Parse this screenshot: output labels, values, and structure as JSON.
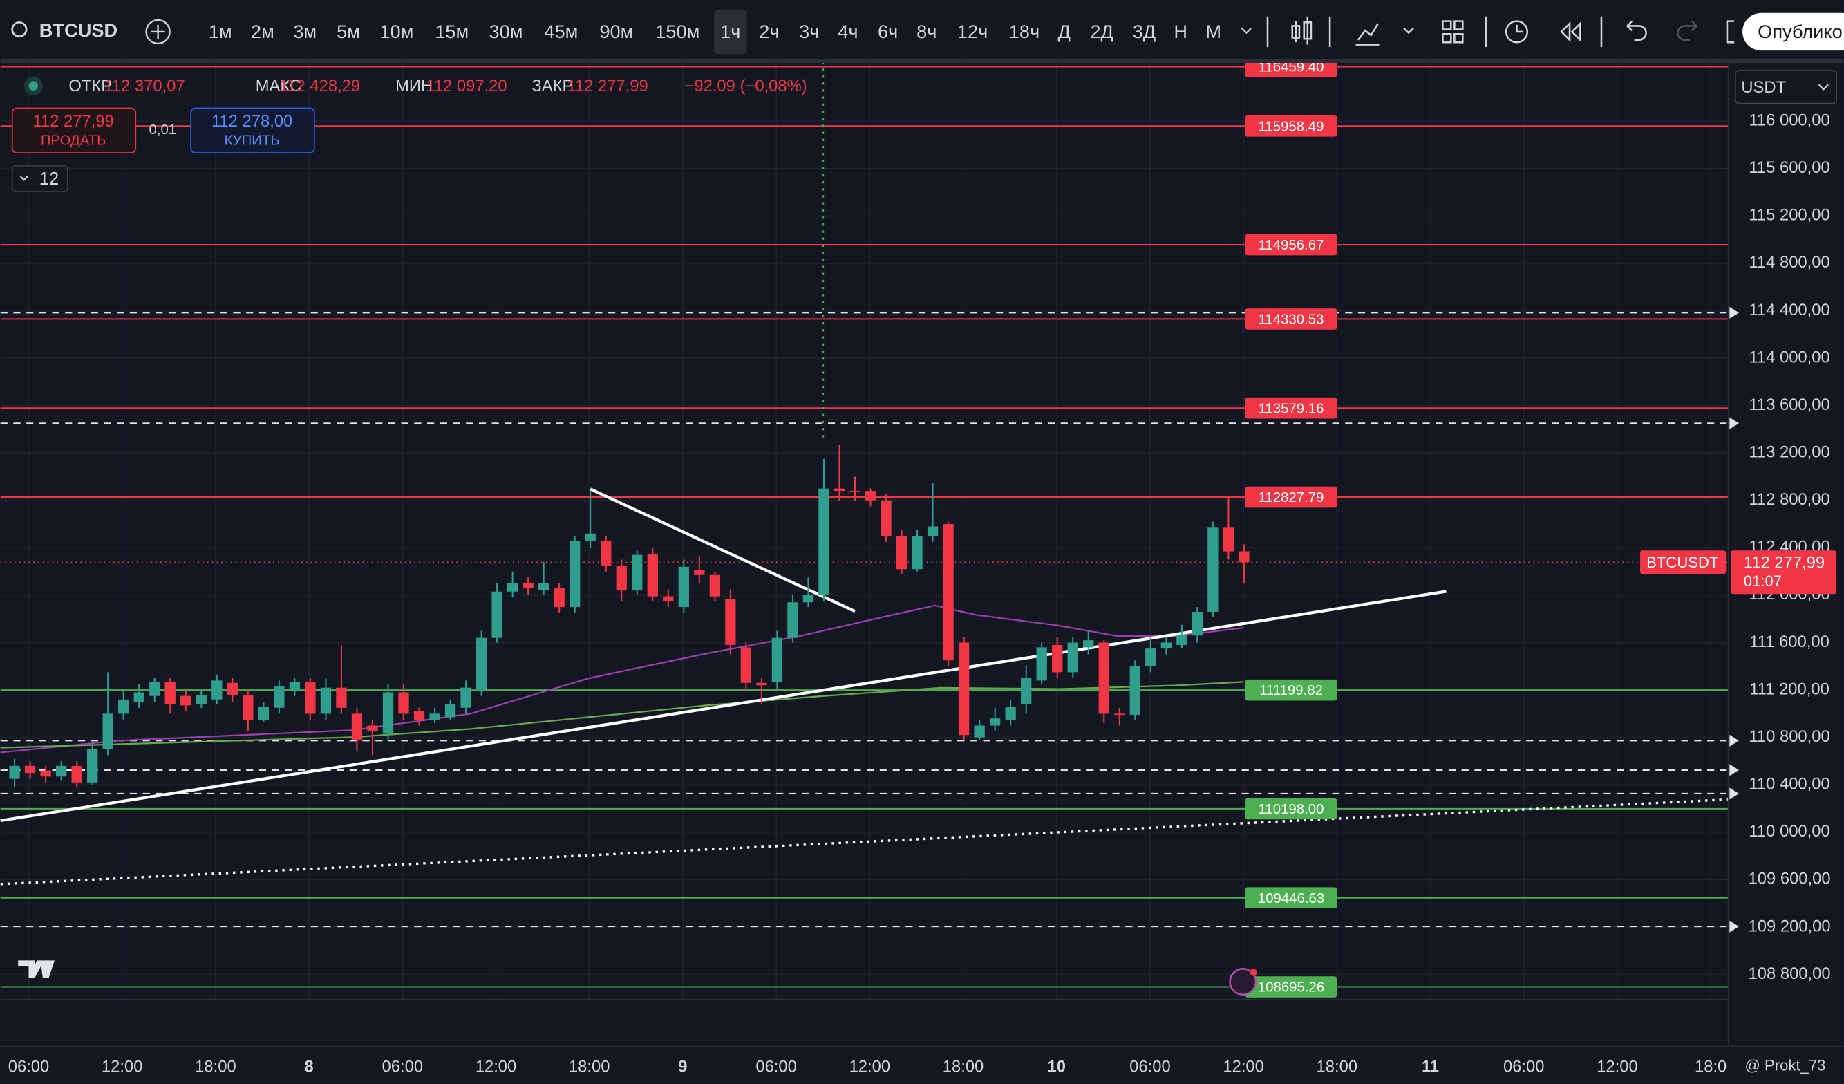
{
  "toolbar": {
    "symbol": "BTCUSD",
    "intervals": [
      "1м",
      "2м",
      "3м",
      "5м",
      "10м",
      "15м",
      "30м",
      "45м",
      "90м",
      "150м",
      "1ч",
      "2ч",
      "3ч",
      "4ч",
      "6ч",
      "8ч",
      "12ч",
      "18ч",
      "Д",
      "2Д",
      "3Д",
      "Н",
      "М"
    ],
    "active_interval_index": 10,
    "publish": "Опублико"
  },
  "ohlc": {
    "open_label": "ОТКР",
    "open": "112 370,07",
    "high_label": "МАКС",
    "high": "112 428,29",
    "low_label": "МИН",
    "low": "112 097,20",
    "close_label": "ЗАКР",
    "close": "112 277,99",
    "change": "−92,09 (−0,08%)"
  },
  "trade": {
    "sell_price": "112 277,99",
    "sell": "ПРОДАТЬ",
    "spread": "0,01",
    "buy_price": "112 278,00",
    "buy": "КУПИТЬ",
    "quantity": "12"
  },
  "currency": "USDT",
  "watermark": "@ Prokt_73",
  "chart_data": {
    "type": "candlestick",
    "up_color": "#2f9e8c",
    "down_color": "#f23645",
    "grid": true,
    "xticks": [
      "06:00",
      "12:00",
      "18:00",
      "8",
      "06:00",
      "12:00",
      "18:00",
      "9",
      "06:00",
      "12:00",
      "18:00",
      "10",
      "06:00",
      "12:00",
      "18:00",
      "11",
      "06:00",
      "12:00",
      "18:0"
    ],
    "ylim": [
      108590,
      116526
    ],
    "yticks": [
      {
        "value": 108800,
        "label": "108 800,00"
      },
      {
        "value": 109200,
        "label": "109 200,00"
      },
      {
        "value": 109600,
        "label": "109 600,00"
      },
      {
        "value": 110000,
        "label": "110 000,00"
      },
      {
        "value": 110400,
        "label": "110 400,00"
      },
      {
        "value": 110800,
        "label": "110 800,00"
      },
      {
        "value": 111200,
        "label": "111 200,00"
      },
      {
        "value": 111600,
        "label": "111 600,00"
      },
      {
        "value": 112000,
        "label": "112 000,00"
      },
      {
        "value": 112400,
        "label": "112 400,00"
      },
      {
        "value": 112800,
        "label": "112 800,00"
      },
      {
        "value": 113200,
        "label": "113 200,00"
      },
      {
        "value": 113600,
        "label": "113 600,00"
      },
      {
        "value": 114000,
        "label": "114 000,00"
      },
      {
        "value": 114400,
        "label": "114 400,00"
      },
      {
        "value": 114800,
        "label": "114 800,00"
      },
      {
        "value": 115200,
        "label": "115 200,00"
      },
      {
        "value": 115600,
        "label": "115 600,00"
      },
      {
        "value": 116000,
        "label": "116 000,00"
      }
    ],
    "open": [
      110450,
      110560,
      110520,
      110470,
      110560,
      110420,
      110700,
      111000,
      111100,
      111150,
      111270,
      111150,
      111080,
      111120,
      111260,
      111160,
      110950,
      111050,
      111200,
      111270,
      111000,
      111220,
      111000,
      110900,
      110830,
      111180,
      111020,
      110950,
      110970,
      111050,
      111200,
      111640,
      112030,
      112100,
      112040,
      112060,
      111900,
      112460,
      112460,
      112250,
      112040,
      112350,
      111990,
      111900,
      112210,
      112170,
      111970,
      111560,
      111260,
      111270,
      111640,
      111940,
      112000,
      112900,
      112880,
      112880,
      112800,
      112500,
      112220,
      112500,
      112600,
      111600,
      110800,
      110900,
      110950,
      111080,
      111280,
      111580,
      111350,
      111560,
      111600,
      111000,
      110990,
      111400,
      111550,
      111580,
      111660,
      111860,
      112570,
      112370.07
    ],
    "high": [
      110620,
      110600,
      110560,
      110600,
      110600,
      110750,
      111350,
      111200,
      111250,
      111300,
      111300,
      111200,
      111200,
      111330,
      111300,
      111200,
      111100,
      111280,
      111300,
      111300,
      111300,
      111580,
      111050,
      110950,
      111250,
      111250,
      111050,
      111050,
      111120,
      111280,
      111700,
      112100,
      112200,
      112150,
      112280,
      112100,
      112500,
      112880,
      112500,
      112300,
      112380,
      112400,
      112050,
      112300,
      112330,
      112200,
      112050,
      111600,
      111300,
      111700,
      112000,
      112150,
      113150,
      113270,
      113000,
      112900,
      112850,
      112550,
      112550,
      112950,
      112620,
      111650,
      110950,
      111050,
      111120,
      111400,
      111600,
      111650,
      111650,
      111700,
      111620,
      111050,
      111450,
      111650,
      111650,
      111750,
      111900,
      112620,
      112840,
      112428.29
    ],
    "low": [
      110380,
      110450,
      110420,
      110440,
      110380,
      110400,
      110650,
      110950,
      111050,
      111100,
      111000,
      111020,
      111050,
      111080,
      111100,
      110850,
      110930,
      111000,
      111150,
      110950,
      110950,
      111000,
      110680,
      110650,
      110780,
      110950,
      110900,
      110920,
      110950,
      111000,
      111150,
      111600,
      111980,
      112000,
      112000,
      111850,
      111850,
      112400,
      112200,
      111950,
      112000,
      111950,
      111900,
      111850,
      112100,
      111950,
      111500,
      111200,
      111080,
      111200,
      111600,
      111900,
      111950,
      112800,
      112800,
      112750,
      112450,
      112180,
      112200,
      112450,
      111400,
      110780,
      110780,
      110850,
      110900,
      111000,
      111250,
      111300,
      111300,
      111500,
      110920,
      110900,
      110950,
      111350,
      111500,
      111550,
      111600,
      111820,
      112300,
      112097.2
    ],
    "close": [
      110560,
      110500,
      110470,
      110560,
      110420,
      110700,
      111000,
      111120,
      111180,
      111270,
      111080,
      111070,
      111160,
      111280,
      111160,
      110950,
      111060,
      111230,
      111270,
      111000,
      111220,
      111050,
      110780,
      110850,
      111180,
      111000,
      110950,
      111000,
      111080,
      111220,
      111640,
      112030,
      112100,
      112060,
      112100,
      111900,
      112460,
      112520,
      112250,
      112040,
      112340,
      111990,
      111950,
      112240,
      112170,
      111990,
      111580,
      111260,
      111240,
      111640,
      111940,
      112000,
      112900,
      112880,
      112870,
      112800,
      112500,
      112220,
      112500,
      112580,
      111450,
      110820,
      110900,
      110960,
      111060,
      111300,
      111560,
      111350,
      111600,
      111620,
      111000,
      110990,
      111400,
      111550,
      111600,
      111660,
      111860,
      112570,
      112370,
      112277.99
    ],
    "levels": [
      {
        "value": 116459.4,
        "label": "116459.40",
        "color": "#f23645"
      },
      {
        "value": 115958.49,
        "label": "115958.49",
        "color": "#f23645"
      },
      {
        "value": 114956.67,
        "label": "114956.67",
        "color": "#f23645"
      },
      {
        "value": 114330.53,
        "label": "114330.53",
        "color": "#f23645"
      },
      {
        "value": 113579.16,
        "label": "113579.16",
        "color": "#f23645"
      },
      {
        "value": 112827.79,
        "label": "112827.79",
        "color": "#f23645"
      },
      {
        "value": 111199.82,
        "label": "111199.82",
        "color": "#4caf50"
      },
      {
        "value": 110198,
        "label": "110198.00",
        "color": "#4caf50"
      },
      {
        "value": 109446.63,
        "label": "109446.63",
        "color": "#4caf50"
      },
      {
        "value": 108695.26,
        "label": "108695.26",
        "color": "#4caf50"
      }
    ],
    "last_price": {
      "value": 112277.99,
      "label": "112 277,99",
      "symbol": "BTCUSDT",
      "countdown": "01:07"
    }
  }
}
